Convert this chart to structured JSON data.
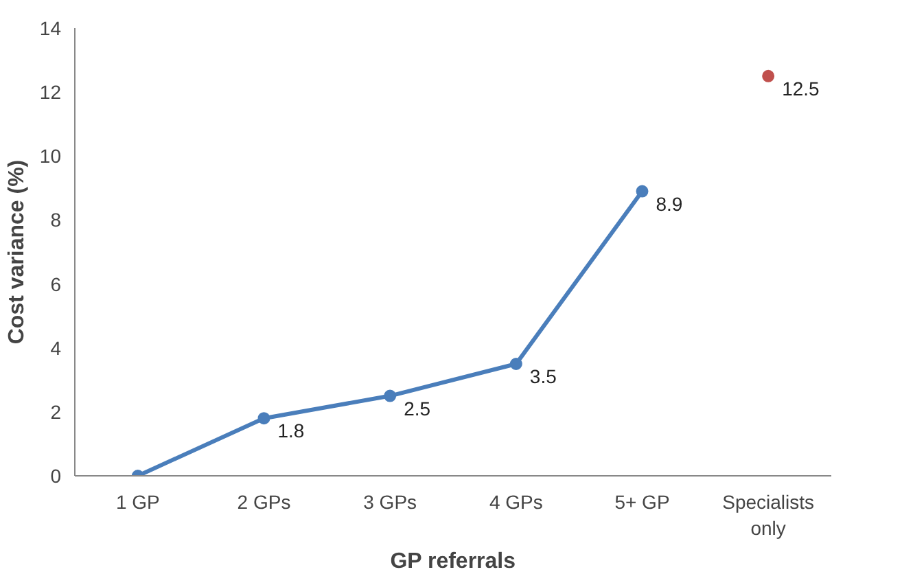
{
  "chart_data": {
    "type": "line",
    "xlabel": "GP referrals",
    "ylabel": "Cost variance (%)",
    "categories": [
      "1 GP",
      "2 GPs",
      "3 GPs",
      "4 GPs",
      "5+ GP",
      "Specialists only"
    ],
    "series": [
      {
        "color": "#4a7ebb",
        "values": [
          0,
          1.8,
          2.5,
          3.5,
          8.9,
          null
        ],
        "value_labels": [
          null,
          "1.8",
          "2.5",
          "3.5",
          "8.9",
          null
        ]
      },
      {
        "type": "scatter",
        "color": "#c0504d",
        "values": [
          null,
          null,
          null,
          null,
          null,
          12.5
        ],
        "value_labels": [
          null,
          null,
          null,
          null,
          null,
          "12.5"
        ]
      }
    ],
    "ylim": [
      0,
      14
    ],
    "yticks": [
      0,
      2,
      4,
      6,
      8,
      10,
      12,
      14
    ],
    "grid": false,
    "marker": "circle",
    "line_style": "solid"
  }
}
